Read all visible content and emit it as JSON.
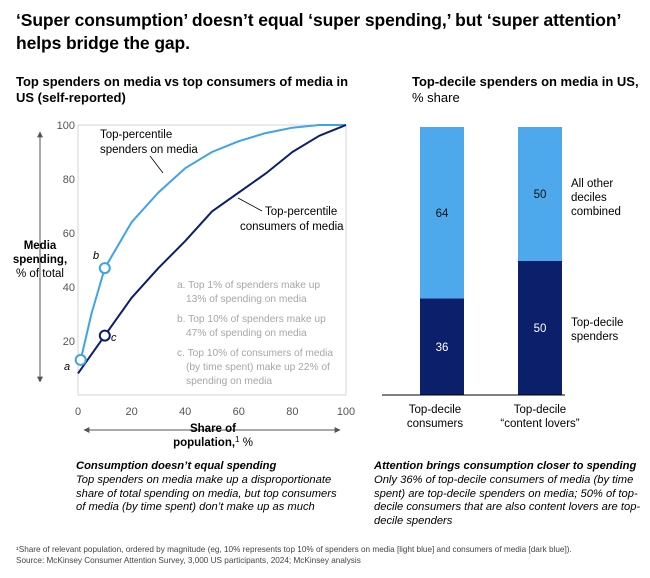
{
  "headline": "‘Super consumption’ doesn’t equal ‘super spending,’ but ‘super attention’ helps bridge the gap.",
  "left_chart": {
    "title": "Top spenders on media vs top consumers of media in US (self-reported)",
    "ylabel_line1": "Media",
    "ylabel_line2": "spending,",
    "ylabel_line3": "% of total",
    "xlabel_line1": "Share of",
    "xlabel_line2": "population,",
    "xlabel_sup": "1",
    "xlabel_unit": " %",
    "light_series_label_line1": "Top-percentile",
    "light_series_label_line2": "spenders on media",
    "dark_series_label_line1": "Top-percentile",
    "dark_series_label_line2": "consumers of media",
    "marker_a": "a",
    "marker_b": "b",
    "marker_c": "c",
    "notes": [
      "a. Top 1% of spenders make up",
      "13% of spending on media",
      "b. Top 10% of spenders make up",
      "47% of spending on media",
      "c. Top 10% of consumers of media",
      "(by time spent) make up 22% of",
      "spending on media"
    ],
    "caption_title": "Consumption doesn’t equal spending",
    "caption_body": "Top spenders on media make up a disproportionate share of total spending on media, but top consumers of media (by time spent) don’t make up as much"
  },
  "right_chart": {
    "title_bold": "Top-decile spenders on media in US,",
    "title_rest": "% share",
    "legend_top_line1": "All other",
    "legend_top_line2": "deciles",
    "legend_top_line3": "combined",
    "legend_bottom_line1": "Top-decile",
    "legend_bottom_line2": "spenders",
    "bar1_label_line1": "Top-decile",
    "bar1_label_line2": "consumers",
    "bar2_label_line1": "Top-decile",
    "bar2_label_line2": "“content lovers”",
    "caption_title": "Attention brings consumption closer to spending",
    "caption_body": "Only 36% of top-decile consumers of media (by time spent) are top-decile spenders on media; 50% of top-decile consumers that are also content lovers are top-decile spenders"
  },
  "chart_data": [
    {
      "type": "line",
      "title": "Top spenders on media vs top consumers of media in US (self-reported)",
      "xlabel": "Share of population, %",
      "ylabel": "Media spending, % of total",
      "xlim": [
        0,
        100
      ],
      "ylim": [
        0,
        100
      ],
      "x_ticks": [
        "0",
        "20",
        "40",
        "60",
        "80",
        "100"
      ],
      "y_ticks": [
        "20",
        "40",
        "60",
        "80",
        "100"
      ],
      "series": [
        {
          "name": "Top-percentile spenders on media",
          "color": "#3fa3e8",
          "x": [
            1,
            5,
            10,
            20,
            30,
            40,
            50,
            60,
            70,
            80,
            90,
            100
          ],
          "y": [
            13,
            30,
            47,
            64,
            75,
            84,
            90,
            94,
            97,
            99,
            100,
            100
          ]
        },
        {
          "name": "Top-percentile consumers of media",
          "color": "#0b1f6b",
          "x": [
            0,
            10,
            20,
            30,
            40,
            50,
            60,
            70,
            80,
            90,
            100
          ],
          "y": [
            8,
            22,
            36,
            47,
            57,
            68,
            75,
            82,
            90,
            96,
            100
          ]
        }
      ],
      "markers": [
        {
          "label": "a",
          "x": 1,
          "y": 13,
          "series": "Top-percentile spenders on media"
        },
        {
          "label": "b",
          "x": 10,
          "y": 47,
          "series": "Top-percentile spenders on media"
        },
        {
          "label": "c",
          "x": 10,
          "y": 22,
          "series": "Top-percentile consumers of media"
        }
      ]
    },
    {
      "type": "bar",
      "stacked": true,
      "title": "Top-decile spenders on media in US, % share",
      "categories": [
        "Top-decile consumers",
        "Top-decile “content lovers”"
      ],
      "series": [
        {
          "name": "Top-decile spenders",
          "color": "#0b1f6b",
          "values": [
            36,
            50
          ]
        },
        {
          "name": "All other deciles combined",
          "color": "#4da8ec",
          "values": [
            64,
            50
          ]
        }
      ]
    }
  ],
  "footnote_line1": "¹Share of relevant population, ordered by magnitude (eg, 10% represents top 10% of spenders on media [light blue] and consumers of media [dark blue]).",
  "footnote_line2": "Source: McKinsey Consumer Attention Survey, 3,000 US participants, 2024; McKinsey analysis"
}
